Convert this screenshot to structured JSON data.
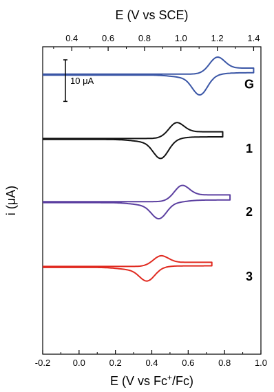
{
  "chart_data": {
    "type": "line",
    "title": "",
    "xlabel_bottom": "E (V vs Fc⁺/Fc)",
    "xlabel_top": "E (V vs SCE)",
    "ylabel": "i (μA)",
    "xlim": [
      -0.2,
      1.0
    ],
    "xlim_top": [
      0.24,
      1.44
    ],
    "x_ticks_bottom": [
      "-0.2",
      "0.0",
      "0.2",
      "0.4",
      "0.6",
      "0.8",
      "1.0"
    ],
    "x_tick_values_bottom": [
      -0.2,
      0.0,
      0.2,
      0.4,
      0.6,
      0.8,
      1.0
    ],
    "x_ticks_top": [
      "0.4",
      "0.6",
      "0.8",
      "1.0",
      "1.2",
      "1.4"
    ],
    "x_tick_values_top": [
      0.4,
      0.6,
      0.8,
      1.0,
      1.2,
      1.4
    ],
    "scale_bar": {
      "label": "10 μA",
      "value_uA": 10
    },
    "ylim_uA": [
      -69,
      5
    ],
    "grid": false,
    "series": [
      {
        "name": "G",
        "color": "#3a56a6",
        "x_start": -0.2,
        "x_end": 0.96,
        "E_half": 0.71,
        "peak_sep": 0.09,
        "baseline_uA": -1.7,
        "anodic_peak_uA": 4.0,
        "cathodic_peak_uA": -4.5,
        "end_current_uA": 1.6
      },
      {
        "name": "1",
        "color": "#111111",
        "x_start": -0.2,
        "x_end": 0.79,
        "E_half": 0.49,
        "peak_sep": 0.08,
        "baseline_uA": -17.2,
        "anodic_peak_uA": 3.7,
        "cathodic_peak_uA": -4.3,
        "end_current_uA": 1.8
      },
      {
        "name": "2",
        "color": "#5b3fa0",
        "x_start": -0.2,
        "x_end": 0.83,
        "E_half": 0.5,
        "peak_sep": 0.12,
        "baseline_uA": -32.4,
        "anodic_peak_uA": 3.8,
        "cathodic_peak_uA": -3.6,
        "end_current_uA": 1.8
      },
      {
        "name": "3",
        "color": "#e0291f",
        "x_start": -0.2,
        "x_end": 0.73,
        "E_half": 0.41,
        "peak_sep": 0.07,
        "baseline_uA": -48.0,
        "anodic_peak_uA": 2.5,
        "cathodic_peak_uA": -3.0,
        "end_current_uA": 1.1
      }
    ]
  }
}
